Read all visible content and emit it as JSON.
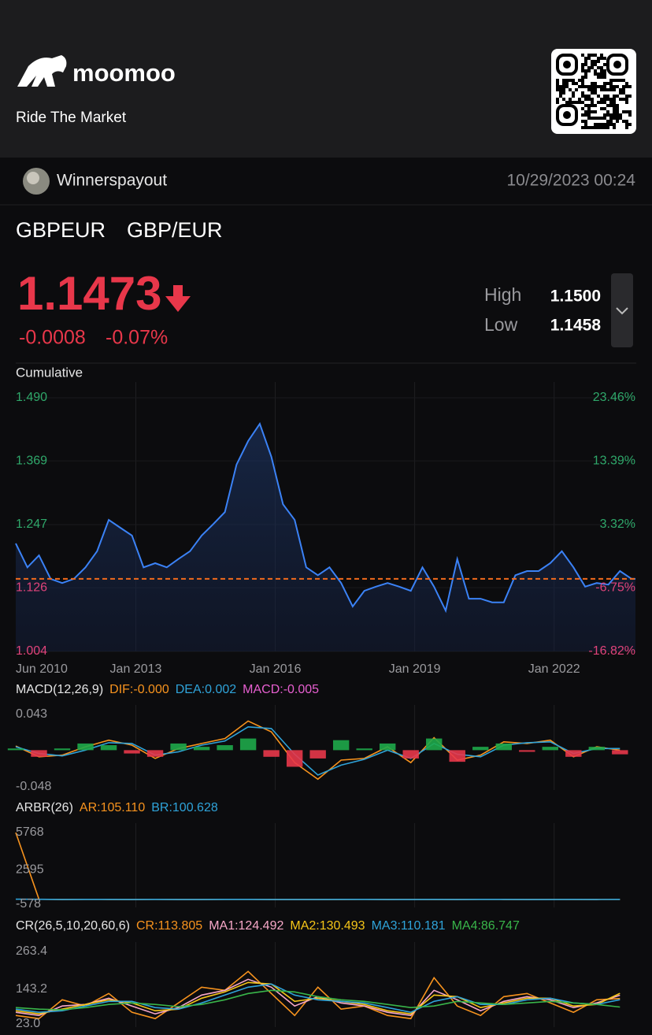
{
  "header": {
    "brand": "moomoo",
    "tagline": "Ride The Market"
  },
  "post": {
    "user": "Winnerspayout",
    "datetime": "10/29/2023 00:24"
  },
  "quote": {
    "symbol": "GBPEUR",
    "name": "GBP/EUR",
    "price": "1.1473",
    "change": "-0.0008",
    "change_pct": "-0.07%",
    "high_label": "High",
    "high": "1.1500",
    "low_label": "Low",
    "low": "1.1458"
  },
  "chart_data": [
    {
      "type": "area",
      "title": "Cumulative",
      "color": "#3b82f6",
      "x": [
        "2010-06",
        "2010-09",
        "2010-12",
        "2011-03",
        "2011-06",
        "2011-09",
        "2011-12",
        "2012-03",
        "2012-06",
        "2012-09",
        "2012-12",
        "2013-03",
        "2013-06",
        "2013-09",
        "2013-12",
        "2014-03",
        "2014-06",
        "2014-09",
        "2014-12",
        "2015-03",
        "2015-06",
        "2015-09",
        "2015-12",
        "2016-03",
        "2016-06",
        "2016-09",
        "2016-12",
        "2017-03",
        "2017-06",
        "2017-09",
        "2017-12",
        "2018-03",
        "2018-06",
        "2018-09",
        "2018-12",
        "2019-03",
        "2019-06",
        "2019-09",
        "2019-12",
        "2020-03",
        "2020-06",
        "2020-09",
        "2020-12",
        "2021-03",
        "2021-06",
        "2021-09",
        "2021-12",
        "2022-03",
        "2022-06",
        "2022-09",
        "2022-12",
        "2023-03",
        "2023-06",
        "2023-09",
        "2023-10"
      ],
      "values": [
        1.211,
        1.165,
        1.188,
        1.143,
        1.135,
        1.143,
        1.165,
        1.196,
        1.256,
        1.241,
        1.226,
        1.165,
        1.173,
        1.165,
        1.181,
        1.196,
        1.226,
        1.248,
        1.271,
        1.362,
        1.407,
        1.44,
        1.377,
        1.286,
        1.256,
        1.165,
        1.15,
        1.165,
        1.135,
        1.09,
        1.12,
        1.128,
        1.135,
        1.128,
        1.12,
        1.165,
        1.128,
        1.082,
        1.181,
        1.105,
        1.105,
        1.098,
        1.098,
        1.15,
        1.158,
        1.158,
        1.173,
        1.196,
        1.165,
        1.128,
        1.135,
        1.132,
        1.158,
        1.143,
        1.143
      ],
      "reference_line": {
        "value": 1.143,
        "color": "#f26b1d"
      },
      "xlim": [
        "2010-06",
        "2023-10"
      ],
      "xticks": [
        {
          "value": "2010-06",
          "label": "Jun 2010"
        },
        {
          "value": "2013-01",
          "label": "Jan 2013"
        },
        {
          "value": "2016-01",
          "label": "Jan 2016"
        },
        {
          "value": "2019-01",
          "label": "Jan 2019"
        },
        {
          "value": "2022-01",
          "label": "Jan 2022"
        }
      ],
      "ylim": [
        1.004,
        1.49
      ],
      "yticks": [
        1.004,
        1.126,
        1.247,
        1.369,
        {
          "value": 1.49,
          "label": "1.490"
        }
      ],
      "y2lim": [
        -16.82,
        23.46
      ],
      "y2ticks": [
        {
          "value": -16.82,
          "label": "-16.82%"
        },
        {
          "value": -6.75,
          "label": "-6.75%"
        },
        {
          "value": 3.32,
          "label": "3.32%"
        },
        {
          "value": 13.39,
          "label": "13.39%"
        },
        {
          "value": 23.46,
          "label": "23.46%"
        }
      ],
      "grid": true
    },
    {
      "type": "line",
      "title": "MACD(12,26,9)",
      "x": [
        "2010-06",
        "2010-12",
        "2011-06",
        "2011-12",
        "2012-06",
        "2012-12",
        "2013-06",
        "2013-12",
        "2014-06",
        "2014-12",
        "2015-06",
        "2015-12",
        "2016-06",
        "2016-12",
        "2017-06",
        "2017-12",
        "2018-06",
        "2018-12",
        "2019-06",
        "2019-12",
        "2020-06",
        "2020-12",
        "2021-06",
        "2021-12",
        "2022-06",
        "2022-12",
        "2023-06"
      ],
      "series": [
        {
          "name": "DIF:-0.000",
          "color": "#f7931e",
          "values": [
            0.005,
            -0.008,
            -0.006,
            0.004,
            0.012,
            0.006,
            -0.01,
            0.002,
            0.008,
            0.014,
            0.035,
            0.022,
            -0.015,
            -0.035,
            -0.012,
            -0.01,
            0.004,
            -0.015,
            0.015,
            -0.012,
            -0.006,
            0.01,
            0.008,
            0.012,
            -0.008,
            0.004,
            0
          ]
        },
        {
          "name": "DEA:0.002",
          "color": "#2fa3d9",
          "values": [
            0.004,
            -0.004,
            -0.007,
            0,
            0.009,
            0.008,
            -0.006,
            -0.002,
            0.006,
            0.011,
            0.028,
            0.026,
            -0.005,
            -0.03,
            -0.018,
            -0.011,
            0,
            -0.01,
            0.008,
            -0.005,
            -0.008,
            0.006,
            0.009,
            0.01,
            -0.004,
            0.002,
            0.002
          ]
        },
        {
          "name": "MACD:-0.005",
          "color": "#e75fd0",
          "type": "bar",
          "up_color": "#1ea84a",
          "down_color": "#e8374a",
          "values": [
            0.002,
            -0.008,
            0.002,
            0.008,
            0.006,
            -0.004,
            -0.008,
            0.008,
            0.004,
            0.006,
            0.014,
            -0.008,
            -0.02,
            -0.01,
            0.012,
            0.002,
            0.008,
            -0.01,
            0.014,
            -0.014,
            0.004,
            0.008,
            -0.002,
            0.004,
            -0.008,
            0.004,
            -0.005
          ]
        }
      ],
      "xlim": [
        "2010-06",
        "2023-10"
      ],
      "ylim": [
        -0.048,
        0.043
      ],
      "yticks": [
        -0.048,
        0.043
      ]
    },
    {
      "type": "line",
      "title": "ARBR(26)",
      "x": [
        "2010-06",
        "2010-12",
        "2011-06",
        "2011-12",
        "2012-06",
        "2012-12",
        "2013-06",
        "2013-12",
        "2014-06",
        "2014-12",
        "2015-06",
        "2015-12",
        "2016-06",
        "2016-12",
        "2017-06",
        "2017-12",
        "2018-06",
        "2018-12",
        "2019-06",
        "2019-12",
        "2020-06",
        "2020-12",
        "2021-06",
        "2021-12",
        "2022-06",
        "2022-12",
        "2023-06"
      ],
      "series": [
        {
          "name": "AR:105.110",
          "color": "#f7931e",
          "values": [
            5768,
            110,
            95,
            105,
            100,
            98,
            102,
            100,
            97,
            103,
            105,
            100,
            95,
            98,
            100,
            102,
            99,
            101,
            100,
            98,
            103,
            100,
            99,
            101,
            100,
            98,
            105.11
          ]
        },
        {
          "name": "BR:100.628",
          "color": "#2fa3d9",
          "values": [
            120,
            108,
            96,
            104,
            101,
            97,
            103,
            99,
            98,
            102,
            106,
            99,
            94,
            99,
            101,
            101,
            98,
            100,
            101,
            97,
            102,
            101,
            98,
            100,
            101,
            97,
            100.628
          ]
        }
      ],
      "xlim": [
        "2010-06",
        "2023-10"
      ],
      "ylim": [
        -578,
        5768
      ],
      "yticks": [
        -578,
        2595,
        5768
      ]
    },
    {
      "type": "line",
      "title": "CR(26,5,10,20,60,6)",
      "x": [
        "2010-06",
        "2010-12",
        "2011-06",
        "2011-12",
        "2012-06",
        "2012-12",
        "2013-06",
        "2013-12",
        "2014-06",
        "2014-12",
        "2015-06",
        "2015-12",
        "2016-06",
        "2016-12",
        "2017-06",
        "2017-12",
        "2018-06",
        "2018-12",
        "2019-06",
        "2019-12",
        "2020-06",
        "2020-12",
        "2021-06",
        "2021-12",
        "2022-06",
        "2022-12",
        "2023-06"
      ],
      "series": [
        {
          "name": "CR:113.805",
          "color": "#f7931e",
          "values": [
            60,
            50,
            110,
            90,
            130,
            70,
            50,
            100,
            150,
            140,
            200,
            130,
            60,
            150,
            80,
            90,
            60,
            50,
            180,
            90,
            60,
            120,
            130,
            100,
            70,
            110,
            113.805
          ]
        },
        {
          "name": "MA1:124.492",
          "color": "#f7a8c8",
          "values": [
            70,
            60,
            90,
            95,
            115,
            90,
            65,
            85,
            125,
            140,
            175,
            150,
            90,
            120,
            100,
            90,
            70,
            60,
            140,
            110,
            75,
            105,
            120,
            110,
            85,
            100,
            124.492
          ]
        },
        {
          "name": "MA2:130.493",
          "color": "#f5c518",
          "values": [
            75,
            65,
            80,
            95,
            110,
            100,
            75,
            80,
            115,
            135,
            165,
            160,
            105,
            115,
            105,
            95,
            75,
            65,
            125,
            120,
            85,
            100,
            115,
            115,
            90,
            95,
            130.493
          ]
        },
        {
          "name": "MA3:110.181",
          "color": "#2fa3d9",
          "values": [
            80,
            70,
            75,
            90,
            105,
            105,
            85,
            80,
            100,
            125,
            150,
            160,
            125,
            110,
            105,
            100,
            85,
            70,
            105,
            120,
            95,
            95,
            110,
            115,
            100,
            95,
            110.181
          ]
        },
        {
          "name": "MA4:86.747",
          "color": "#39b54a",
          "values": [
            85,
            80,
            78,
            85,
            95,
            100,
            95,
            88,
            95,
            110,
            130,
            140,
            135,
            120,
            110,
            105,
            95,
            85,
            90,
            105,
            100,
            95,
            100,
            105,
            100,
            95,
            86.747
          ]
        }
      ],
      "xlim": [
        "2010-06",
        "2023-10"
      ],
      "ylim": [
        23,
        263.4
      ],
      "yticks": [
        {
          "value": 23,
          "label": "23.0"
        },
        143.2,
        263.4
      ]
    }
  ]
}
